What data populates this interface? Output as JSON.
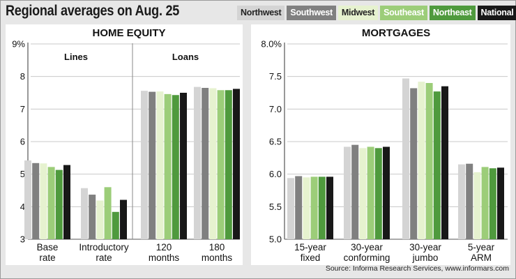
{
  "title": "Regional averages on Aug. 25",
  "source": "Source: Informa Research Services, www.informars.com",
  "legend": [
    {
      "label": "Northwest",
      "color": "#d4d4d4",
      "text_color": "#222222"
    },
    {
      "label": "Southwest",
      "color": "#808080",
      "text_color": "#ffffff"
    },
    {
      "label": "Midwest",
      "color": "#e6f2cf",
      "text_color": "#222222"
    },
    {
      "label": "Southeast",
      "color": "#9ccd79",
      "text_color": "#ffffff"
    },
    {
      "label": "Northeast",
      "color": "#4f9a3d",
      "text_color": "#ffffff"
    },
    {
      "label": "National",
      "color": "#181818",
      "text_color": "#ffffff"
    }
  ],
  "chart_data": [
    {
      "type": "bar",
      "title": "HOME EQUITY",
      "groups": [
        {
          "label": "Lines",
          "categories": [
            0,
            1
          ]
        },
        {
          "label": "Loans",
          "categories": [
            2,
            3
          ]
        }
      ],
      "categories": [
        [
          "Base",
          "rate"
        ],
        [
          "Introductory",
          "rate"
        ],
        [
          "120",
          "months"
        ],
        [
          "180",
          "months"
        ]
      ],
      "yticks": [
        "9%",
        "8",
        "7",
        "6",
        "5",
        "4",
        "3"
      ],
      "ylim": [
        3,
        9
      ],
      "series": [
        {
          "name": "Northwest",
          "values": [
            5.42,
            4.57,
            7.56,
            7.68
          ]
        },
        {
          "name": "Southwest",
          "values": [
            5.34,
            4.37,
            7.53,
            7.65
          ]
        },
        {
          "name": "Midwest",
          "values": [
            5.33,
            4.19,
            7.54,
            7.64
          ]
        },
        {
          "name": "Southeast",
          "values": [
            5.22,
            4.6,
            7.46,
            7.58
          ]
        },
        {
          "name": "Northeast",
          "values": [
            5.13,
            3.84,
            7.43,
            7.58
          ]
        },
        {
          "name": "National",
          "values": [
            5.28,
            4.21,
            7.5,
            7.62
          ]
        }
      ]
    },
    {
      "type": "bar",
      "title": "MORTGAGES",
      "categories": [
        [
          "15-year",
          "fixed"
        ],
        [
          "30-year",
          "conforming"
        ],
        [
          "30-year",
          "jumbo"
        ],
        [
          "5-year",
          "ARM"
        ]
      ],
      "yticks": [
        "8.0%",
        "7.5",
        "7.0",
        "6.5",
        "6.0",
        "5.5",
        "5.0"
      ],
      "ylim": [
        5.0,
        8.0
      ],
      "series": [
        {
          "name": "Northwest",
          "values": [
            5.94,
            6.42,
            7.47,
            6.15
          ]
        },
        {
          "name": "Southwest",
          "values": [
            5.97,
            6.45,
            7.32,
            6.16
          ]
        },
        {
          "name": "Midwest",
          "values": [
            5.95,
            6.4,
            7.42,
            6.03
          ]
        },
        {
          "name": "Southeast",
          "values": [
            5.96,
            6.42,
            7.4,
            6.11
          ]
        },
        {
          "name": "Northeast",
          "values": [
            5.96,
            6.4,
            7.27,
            6.09
          ]
        },
        {
          "name": "National",
          "values": [
            5.96,
            6.42,
            7.35,
            6.1
          ]
        }
      ]
    }
  ]
}
